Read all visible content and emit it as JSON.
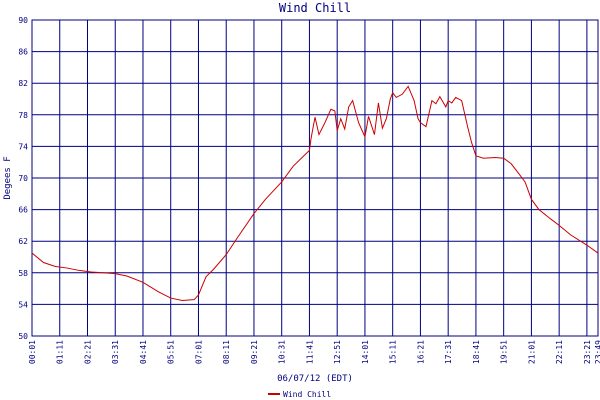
{
  "chart_data": {
    "type": "line",
    "title": "Wind Chill",
    "y_label": "Degees F",
    "x_label": "06/07/12 (EDT)",
    "ylim": [
      50,
      90
    ],
    "yticks": [
      50,
      54,
      58,
      62,
      66,
      70,
      74,
      78,
      82,
      86,
      90
    ],
    "xlim": [
      "00:01",
      "23:49"
    ],
    "xticks": [
      "00:01",
      "01:11",
      "02:21",
      "03:31",
      "04:41",
      "05:51",
      "07:01",
      "08:11",
      "09:21",
      "10:31",
      "11:41",
      "12:51",
      "14:01",
      "15:11",
      "16:21",
      "17:31",
      "18:41",
      "19:51",
      "21:01",
      "22:11",
      "23:21",
      "23:49"
    ],
    "grid": true,
    "x": [
      "00:01",
      "00:30",
      "01:00",
      "01:30",
      "02:00",
      "02:30",
      "03:00",
      "03:31",
      "04:00",
      "04:41",
      "05:20",
      "05:51",
      "06:20",
      "06:50",
      "07:01",
      "07:20",
      "07:40",
      "08:11",
      "08:40",
      "09:21",
      "09:50",
      "10:31",
      "11:00",
      "11:41",
      "11:45",
      "11:55",
      "12:05",
      "12:20",
      "12:35",
      "12:45",
      "12:51",
      "13:00",
      "13:10",
      "13:20",
      "13:30",
      "13:45",
      "14:01",
      "14:10",
      "14:25",
      "14:35",
      "14:45",
      "14:55",
      "15:05",
      "15:11",
      "15:20",
      "15:35",
      "15:50",
      "16:05",
      "16:15",
      "16:21",
      "16:35",
      "16:50",
      "17:00",
      "17:10",
      "17:25",
      "17:31",
      "17:40",
      "17:50",
      "18:05",
      "18:20",
      "18:30",
      "18:41",
      "19:00",
      "19:30",
      "19:51",
      "20:10",
      "20:30",
      "20:45",
      "21:01",
      "21:20",
      "21:50",
      "22:11",
      "22:40",
      "23:21",
      "23:49"
    ],
    "series": [
      {
        "name": "Wind Chill",
        "color": "#cc0000",
        "values": [
          60.5,
          59.3,
          58.8,
          58.6,
          58.3,
          58.1,
          58.0,
          57.9,
          57.6,
          56.8,
          55.6,
          54.8,
          54.5,
          54.6,
          55.2,
          57.5,
          58.5,
          60.3,
          62.5,
          65.5,
          67.3,
          69.5,
          71.5,
          73.5,
          75,
          77.7,
          75.5,
          77,
          78.7,
          78.5,
          76,
          77.5,
          76.2,
          79,
          79.8,
          77,
          75.2,
          77.8,
          75.5,
          79.5,
          76.3,
          77.5,
          80,
          80.8,
          80.2,
          80.6,
          81.6,
          79.8,
          77.5,
          77.0,
          76.5,
          79.8,
          79.4,
          80.3,
          79.0,
          79.8,
          79.5,
          80.2,
          79.8,
          76.5,
          74.5,
          72.8,
          72.5,
          72.6,
          72.5,
          71.8,
          70.5,
          69.5,
          67.3,
          66,
          64.8,
          64,
          62.8,
          61.5,
          60.5
        ]
      }
    ]
  }
}
